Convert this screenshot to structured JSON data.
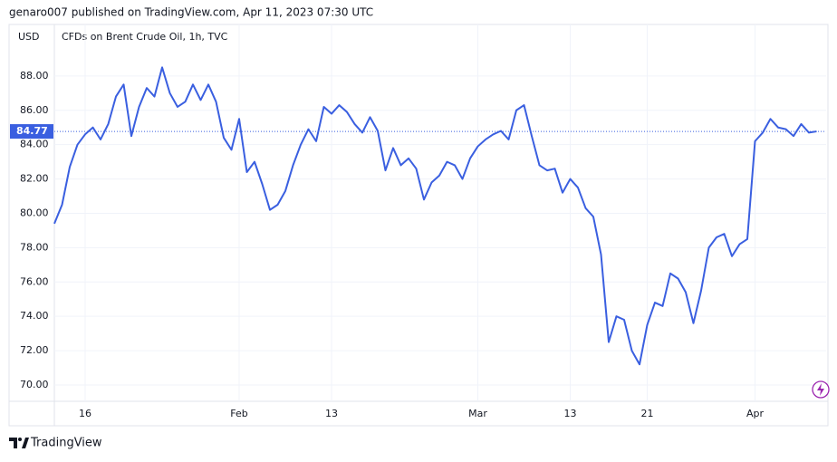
{
  "header": {
    "published": "genaro007 published on TradingView.com, Apr 11, 2023 07:30 UTC"
  },
  "footer": {
    "brand": "TradingView"
  },
  "chart_data": {
    "type": "line",
    "title": "CFDs on Brent Crude Oil, 1h, TVC",
    "y_label": "USD",
    "color": "#3a5fe0",
    "categories": [
      null,
      null,
      null,
      null,
      "16",
      null,
      null,
      null,
      null,
      null,
      null,
      null,
      null,
      null,
      null,
      null,
      null,
      null,
      null,
      null,
      null,
      null,
      null,
      null,
      "Feb",
      null,
      null,
      null,
      null,
      null,
      null,
      null,
      null,
      null,
      null,
      null,
      "13",
      null,
      null,
      null,
      null,
      null,
      null,
      null,
      null,
      null,
      null,
      null,
      null,
      null,
      null,
      null,
      null,
      null,
      null,
      "Mar",
      null,
      null,
      null,
      null,
      null,
      null,
      null,
      null,
      null,
      null,
      null,
      "13",
      null,
      null,
      null,
      null,
      null,
      null,
      null,
      null,
      null,
      "21",
      null,
      null,
      null,
      null,
      null,
      null,
      null,
      null,
      null,
      null,
      null,
      null,
      null,
      "Apr",
      null,
      null,
      null,
      null,
      null,
      null,
      null,
      null
    ],
    "values": [
      79.4,
      80.5,
      82.7,
      84.0,
      84.6,
      85.0,
      84.3,
      85.2,
      86.8,
      87.5,
      84.5,
      86.2,
      87.3,
      86.8,
      88.5,
      87.0,
      86.2,
      86.5,
      87.5,
      86.6,
      87.5,
      86.5,
      84.4,
      83.7,
      85.5,
      82.4,
      83.0,
      81.7,
      80.2,
      80.5,
      81.3,
      82.8,
      84.0,
      84.9,
      84.2,
      86.2,
      85.8,
      86.3,
      85.9,
      85.2,
      84.7,
      85.6,
      84.8,
      82.5,
      83.8,
      82.8,
      83.2,
      82.6,
      80.8,
      81.8,
      82.2,
      83.0,
      82.8,
      82.0,
      83.2,
      83.9,
      84.3,
      84.6,
      84.8,
      84.3,
      86.0,
      86.3,
      84.5,
      82.8,
      82.5,
      82.6,
      81.2,
      82.0,
      81.5,
      80.3,
      79.8,
      77.6,
      72.5,
      74.0,
      73.8,
      72.0,
      71.2,
      73.5,
      74.8,
      74.6,
      76.5,
      76.2,
      75.4,
      73.6,
      75.5,
      78.0,
      78.6,
      78.8,
      77.5,
      78.2,
      78.5,
      84.2,
      84.7,
      85.5,
      85.0,
      84.9,
      84.5,
      85.2,
      84.7,
      84.77
    ],
    "last_value": 84.77,
    "ylim": [
      69.05,
      91.0
    ],
    "yticks": [
      {
        "value": 70,
        "label": "70.00"
      },
      {
        "value": 72,
        "label": "72.00"
      },
      {
        "value": 74,
        "label": "74.00"
      },
      {
        "value": 76,
        "label": "76.00"
      },
      {
        "value": 78,
        "label": "78.00"
      },
      {
        "value": 80,
        "label": "80.00"
      },
      {
        "value": 82,
        "label": "82.00"
      },
      {
        "value": 84,
        "label": "84.00"
      },
      {
        "value": 86,
        "label": "86.00"
      },
      {
        "value": 88,
        "label": "88.00"
      }
    ],
    "grid": true
  }
}
